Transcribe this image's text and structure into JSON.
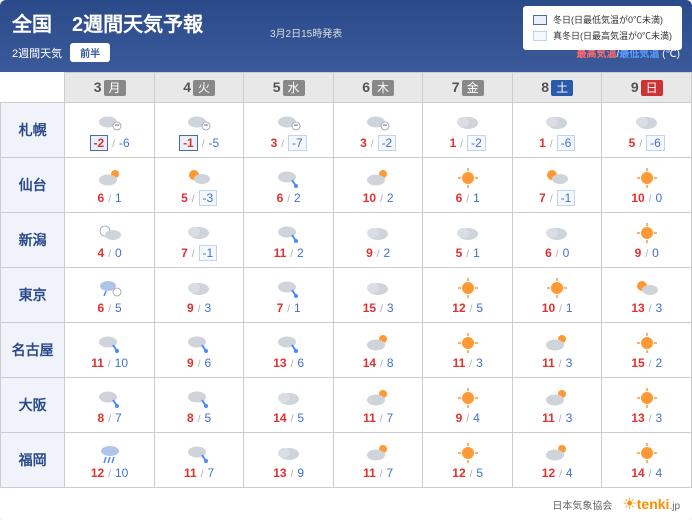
{
  "header": {
    "title": "全国　2週間天気予報",
    "issued": "3月2日15時発表",
    "sub_label": "2週間天気",
    "btn": "前半",
    "hi_label": "最高気温",
    "lo_label": "最低気温",
    "unit": "(℃)"
  },
  "legend": {
    "winter_day": "冬日(日最低気温が0℃未満)",
    "midwinter_day": "真冬日(日最高気温が0℃未満)"
  },
  "days": [
    {
      "num": "3",
      "wd": "月",
      "cls": ""
    },
    {
      "num": "4",
      "wd": "火",
      "cls": ""
    },
    {
      "num": "5",
      "wd": "水",
      "cls": ""
    },
    {
      "num": "6",
      "wd": "木",
      "cls": ""
    },
    {
      "num": "7",
      "wd": "金",
      "cls": ""
    },
    {
      "num": "8",
      "wd": "土",
      "cls": "sat"
    },
    {
      "num": "9",
      "wd": "日",
      "cls": "sun"
    }
  ],
  "cities": [
    {
      "name": "札幌",
      "fc": [
        {
          "w": "cloud-snow",
          "hi": "-2",
          "lo": "-6",
          "box": "wd"
        },
        {
          "w": "cloud-snow",
          "hi": "-1",
          "lo": "-5",
          "box": "wd"
        },
        {
          "w": "cloud-snow",
          "hi": "3",
          "lo": "-7",
          "box": "lo"
        },
        {
          "w": "cloud-snow",
          "hi": "3",
          "lo": "-2",
          "box": "lo"
        },
        {
          "w": "cloud",
          "hi": "1",
          "lo": "-2",
          "box": "lo"
        },
        {
          "w": "cloud",
          "hi": "1",
          "lo": "-6",
          "box": "lo"
        },
        {
          "w": "cloud",
          "hi": "5",
          "lo": "-6",
          "box": "lo"
        }
      ]
    },
    {
      "name": "仙台",
      "fc": [
        {
          "w": "cloud-sun",
          "hi": "6",
          "lo": "1",
          "box": ""
        },
        {
          "w": "sun-cloud",
          "hi": "5",
          "lo": "-3",
          "box": "lo"
        },
        {
          "w": "cloud-rain",
          "hi": "6",
          "lo": "2",
          "box": ""
        },
        {
          "w": "cloud-sun",
          "hi": "10",
          "lo": "2",
          "box": ""
        },
        {
          "w": "sun",
          "hi": "6",
          "lo": "1",
          "box": ""
        },
        {
          "w": "sun-cloud",
          "hi": "7",
          "lo": "-1",
          "box": "lo"
        },
        {
          "w": "sun",
          "hi": "10",
          "lo": "0",
          "box": ""
        }
      ]
    },
    {
      "name": "新潟",
      "fc": [
        {
          "w": "snow-cloud",
          "hi": "4",
          "lo": "0",
          "box": ""
        },
        {
          "w": "cloud",
          "hi": "7",
          "lo": "-1",
          "box": "lo"
        },
        {
          "w": "cloud-rain",
          "hi": "11",
          "lo": "2",
          "box": ""
        },
        {
          "w": "cloud",
          "hi": "9",
          "lo": "2",
          "box": ""
        },
        {
          "w": "cloud",
          "hi": "5",
          "lo": "1",
          "box": ""
        },
        {
          "w": "cloud",
          "hi": "6",
          "lo": "0",
          "box": ""
        },
        {
          "w": "sun",
          "hi": "9",
          "lo": "0",
          "box": ""
        }
      ]
    },
    {
      "name": "東京",
      "fc": [
        {
          "w": "rain-snow",
          "hi": "6",
          "lo": "5",
          "box": ""
        },
        {
          "w": "cloud",
          "hi": "9",
          "lo": "3",
          "box": ""
        },
        {
          "w": "cloud-rain",
          "hi": "7",
          "lo": "1",
          "box": ""
        },
        {
          "w": "cloud",
          "hi": "15",
          "lo": "3",
          "box": ""
        },
        {
          "w": "sun",
          "hi": "12",
          "lo": "5",
          "box": ""
        },
        {
          "w": "sun",
          "hi": "10",
          "lo": "1",
          "box": ""
        },
        {
          "w": "sun-cloud",
          "hi": "13",
          "lo": "3",
          "box": ""
        }
      ]
    },
    {
      "name": "名古屋",
      "fc": [
        {
          "w": "cloud-rain",
          "hi": "11",
          "lo": "10",
          "box": ""
        },
        {
          "w": "cloud-rain",
          "hi": "9",
          "lo": "6",
          "box": ""
        },
        {
          "w": "cloud-rain",
          "hi": "13",
          "lo": "6",
          "box": ""
        },
        {
          "w": "cloud-sun",
          "hi": "14",
          "lo": "8",
          "box": ""
        },
        {
          "w": "sun",
          "hi": "11",
          "lo": "3",
          "box": ""
        },
        {
          "w": "cloud-sun",
          "hi": "11",
          "lo": "3",
          "box": ""
        },
        {
          "w": "sun",
          "hi": "15",
          "lo": "2",
          "box": ""
        }
      ]
    },
    {
      "name": "大阪",
      "fc": [
        {
          "w": "cloud-rain",
          "hi": "8",
          "lo": "7",
          "box": ""
        },
        {
          "w": "cloud-rain",
          "hi": "8",
          "lo": "5",
          "box": ""
        },
        {
          "w": "cloud",
          "hi": "14",
          "lo": "5",
          "box": ""
        },
        {
          "w": "cloud-sun",
          "hi": "11",
          "lo": "7",
          "box": ""
        },
        {
          "w": "sun",
          "hi": "9",
          "lo": "4",
          "box": ""
        },
        {
          "w": "cloud-sun",
          "hi": "11",
          "lo": "3",
          "box": ""
        },
        {
          "w": "sun",
          "hi": "13",
          "lo": "3",
          "box": ""
        }
      ]
    },
    {
      "name": "福岡",
      "fc": [
        {
          "w": "rain",
          "hi": "12",
          "lo": "10",
          "box": ""
        },
        {
          "w": "cloud-rain",
          "hi": "11",
          "lo": "7",
          "box": ""
        },
        {
          "w": "cloud",
          "hi": "13",
          "lo": "9",
          "box": ""
        },
        {
          "w": "cloud-sun",
          "hi": "11",
          "lo": "7",
          "box": ""
        },
        {
          "w": "sun",
          "hi": "12",
          "lo": "5",
          "box": ""
        },
        {
          "w": "cloud-sun",
          "hi": "12",
          "lo": "4",
          "box": ""
        },
        {
          "w": "sun",
          "hi": "14",
          "lo": "4",
          "box": ""
        }
      ]
    }
  ],
  "footer": {
    "assoc": "日本気象協会",
    "logo": "tenki",
    "logo_sub": ".jp"
  },
  "colors": {
    "hi": "#e03030",
    "lo": "#4070d0",
    "header_bg": "#2a4a8a",
    "city_bg": "#f0f4fa",
    "sat": "#2a5aaa",
    "sun": "#cc3333"
  }
}
